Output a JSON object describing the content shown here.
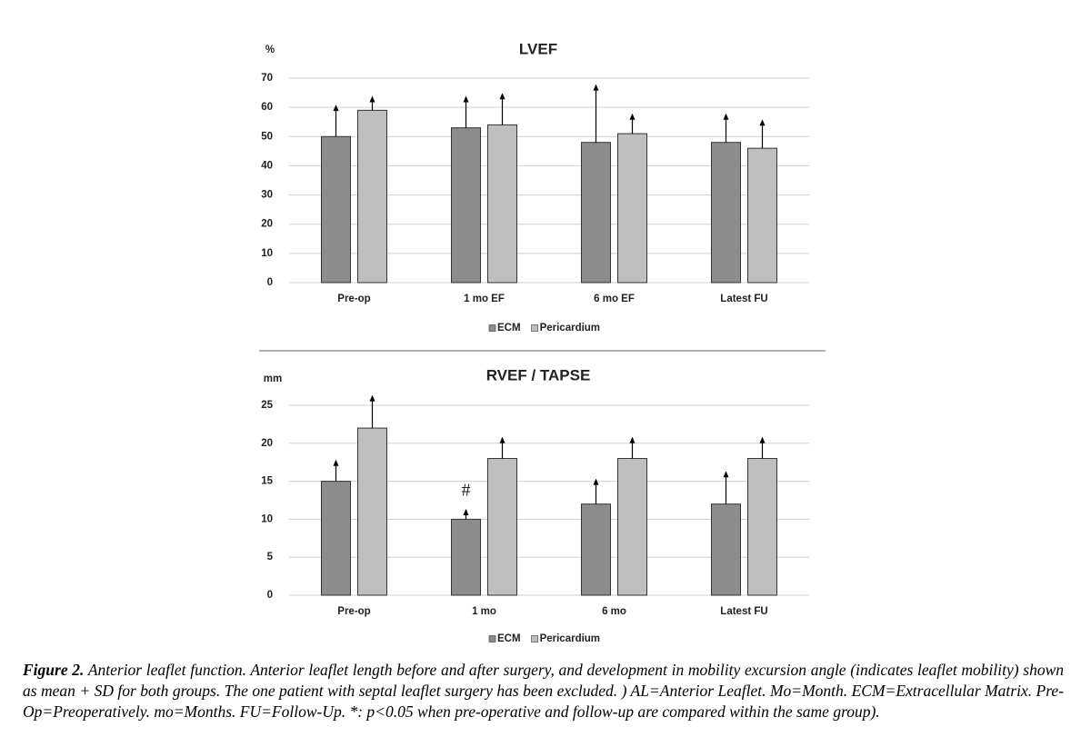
{
  "chart_data": [
    {
      "type": "bar",
      "title": "LVEF",
      "unit": "%",
      "categories": [
        "Pre-op",
        "1 mo EF",
        "6 mo EF",
        "Latest FU"
      ],
      "series": [
        {
          "name": "ECM",
          "color": "#8c8c8c",
          "values": [
            50,
            53,
            48,
            48
          ],
          "errors": [
            10,
            10,
            19,
            9
          ]
        },
        {
          "name": "Pericardium",
          "color": "#bfbfbf",
          "values": [
            59,
            54,
            51,
            46
          ],
          "errors": [
            4,
            10,
            6,
            9
          ]
        }
      ],
      "ylim": [
        0,
        70
      ],
      "yticks": [
        0,
        10,
        20,
        30,
        40,
        50,
        60,
        70
      ],
      "grid": true,
      "legend": "bottom"
    },
    {
      "type": "bar",
      "title": "RVEF / TAPSE",
      "unit": "mm",
      "categories": [
        "Pre-op",
        "1 mo",
        "6 mo",
        "Latest FU"
      ],
      "series": [
        {
          "name": "ECM",
          "color": "#8c8c8c",
          "values": [
            15,
            10,
            12,
            12
          ],
          "errors": [
            2.5,
            1,
            3,
            4
          ]
        },
        {
          "name": "Pericardium",
          "color": "#bfbfbf",
          "values": [
            22,
            18,
            18,
            18
          ],
          "errors": [
            4,
            2.5,
            2.5,
            2.5
          ]
        }
      ],
      "ylim": [
        0,
        25
      ],
      "yticks": [
        0,
        5,
        10,
        15,
        20,
        25
      ],
      "grid": true,
      "legend": "bottom",
      "annotation": "#"
    }
  ],
  "caption": {
    "label": "Figure 2.",
    "text": "Anterior leaflet function. Anterior leaflet length before and after surgery, and development in mobility excursion angle (indicates leaflet mobility) shown as mean + SD for both groups. The one patient with septal leaflet surgery has been excluded. ) AL=Anterior Leaflet. Mo=Month. ECM=Extracellular Matrix. Pre-Op=Preoperatively. mo=Months. FU=Follow-Up. *: p<0.05 when pre-operative and follow-up are compared within the same group)."
  }
}
